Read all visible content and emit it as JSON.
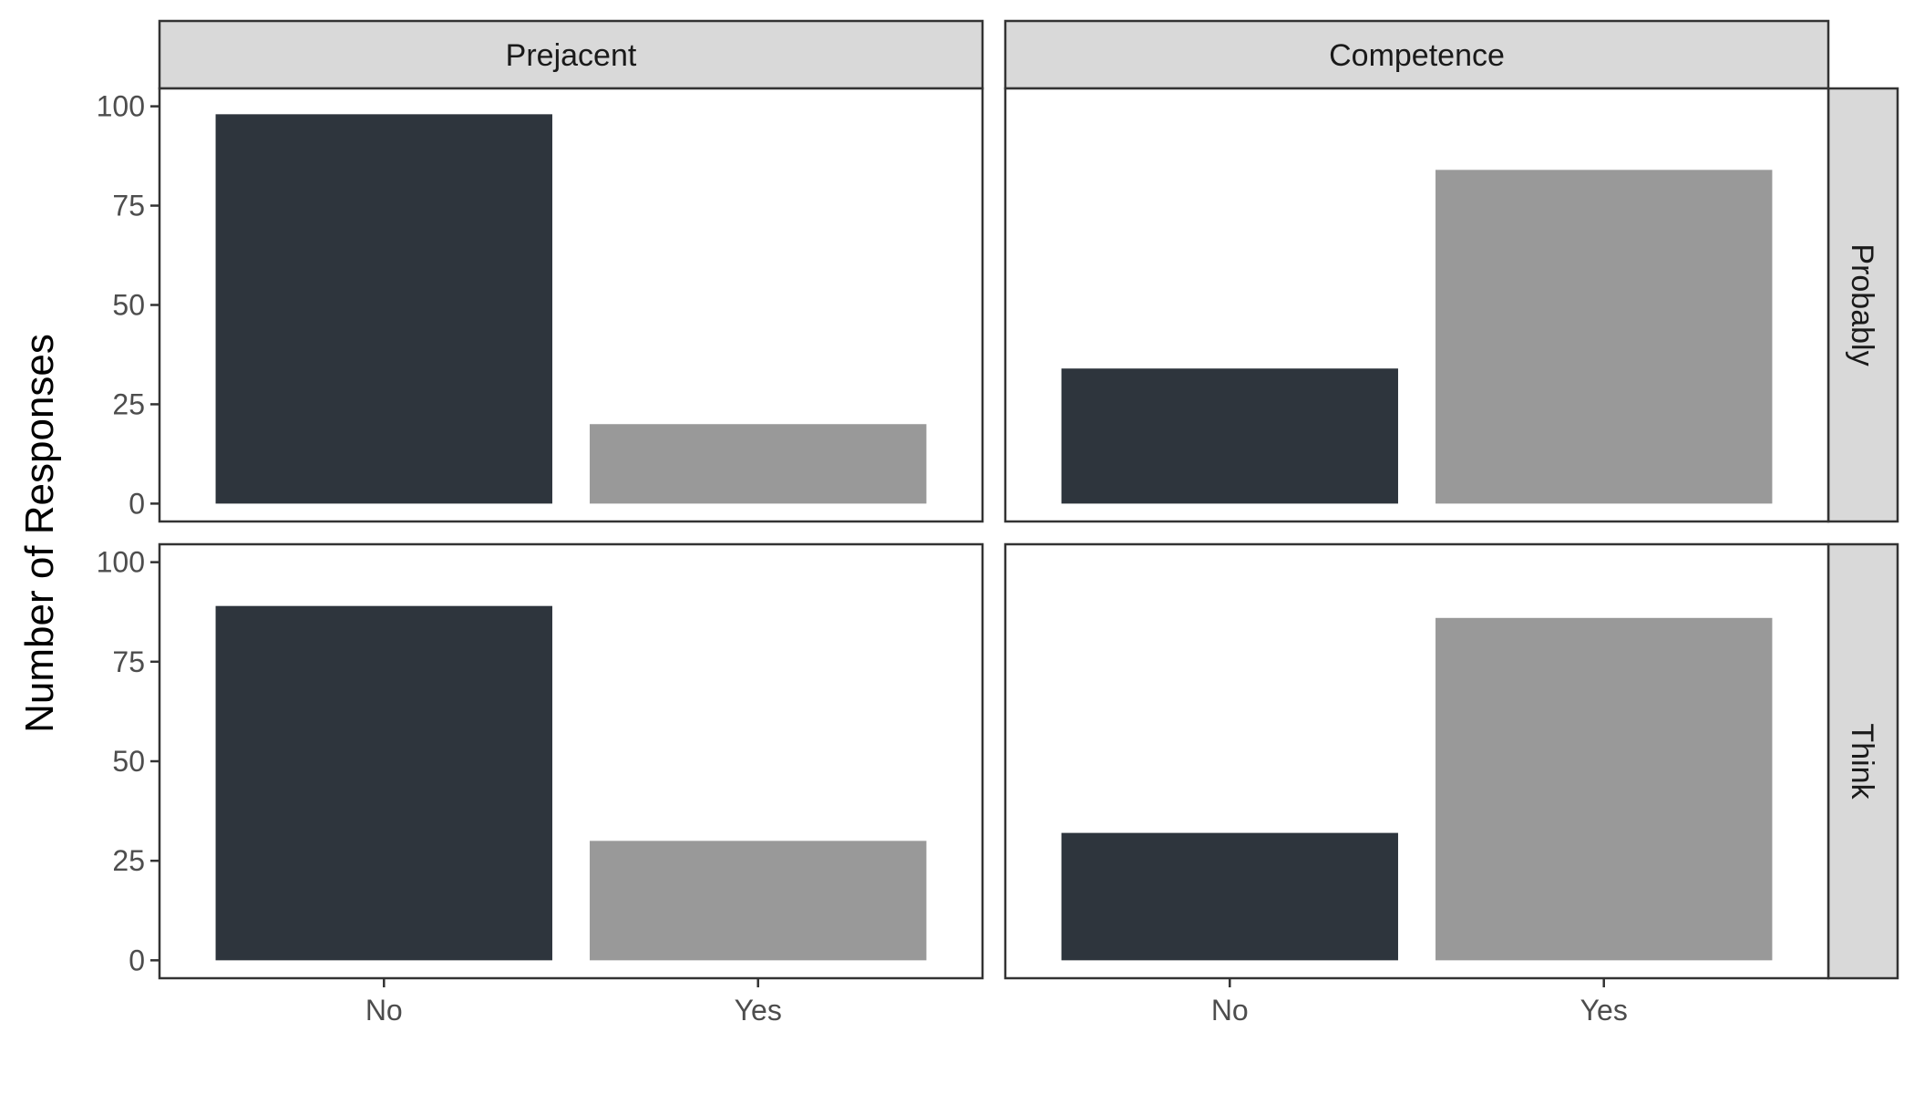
{
  "chart_data": {
    "type": "bar",
    "ylabel": "Number of Responses",
    "xlabel": "",
    "categories": [
      "No",
      "Yes"
    ],
    "yticks": [
      "0",
      "25",
      "50",
      "75",
      "100"
    ],
    "ylim": [
      0,
      100
    ],
    "columns": [
      "Prejacent",
      "Competence"
    ],
    "rows": [
      "Probably",
      "Think"
    ],
    "colors": {
      "No": "#2e353d",
      "Yes": "#999999"
    },
    "panels": [
      {
        "row": "Probably",
        "column": "Prejacent",
        "values": [
          98,
          20
        ]
      },
      {
        "row": "Probably",
        "column": "Competence",
        "values": [
          34,
          84
        ]
      },
      {
        "row": "Think",
        "column": "Prejacent",
        "values": [
          89,
          30
        ]
      },
      {
        "row": "Think",
        "column": "Competence",
        "values": [
          32,
          86
        ]
      }
    ]
  }
}
